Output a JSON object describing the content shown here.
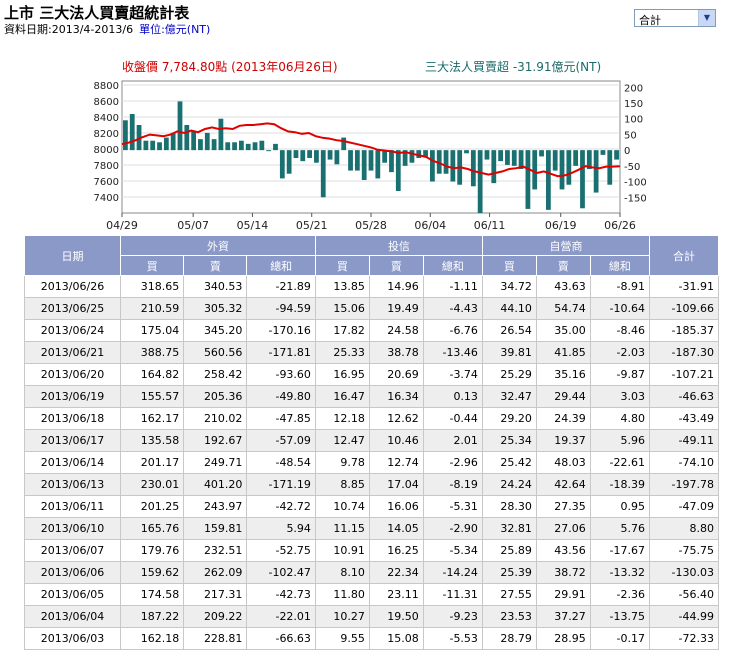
{
  "header": {
    "title": "上市 三大法人買賣超統計表",
    "date_range": "資料日期:2013/4-2013/6",
    "unit": "單位:億元(NT)"
  },
  "select": {
    "value": "合計"
  },
  "chart_data": {
    "type": "bar+line",
    "left_legend": "收盤價 7,784.80點 (2013年06月26日)",
    "right_legend": "三大法人買賣超 -31.91億元(NT)",
    "left_axis": {
      "ticks": [
        7400,
        7600,
        7800,
        8000,
        8200,
        8400,
        8600,
        8800
      ],
      "range": [
        7200,
        8850
      ]
    },
    "right_axis": {
      "ticks": [
        -150,
        -100,
        -50,
        0,
        50,
        100,
        150,
        200
      ],
      "range": [
        -200,
        220
      ]
    },
    "x_labels": [
      "04/29",
      "05/07",
      "05/14",
      "05/21",
      "05/28",
      "06/04",
      "06/11",
      "06/19",
      "06/26"
    ],
    "x_label_indices": [
      0,
      6,
      11,
      16,
      21,
      26,
      31,
      37,
      42
    ],
    "colors": {
      "bar": "#1a7070",
      "line": "#e00000"
    },
    "net_values": [
      95,
      115,
      80,
      30,
      30,
      25,
      40,
      55,
      155,
      80,
      60,
      35,
      55,
      35,
      100,
      25,
      25,
      30,
      20,
      25,
      30,
      0,
      20,
      -90,
      -75,
      -25,
      -35,
      -25,
      -40,
      -150,
      -30,
      -45,
      40,
      -65,
      -65,
      -95,
      -65,
      -90,
      -40,
      -70,
      -130,
      -50,
      -40,
      -25,
      -20,
      -100,
      -75,
      -75,
      -100,
      -110,
      -10,
      -115,
      -200,
      -30,
      -105,
      -35,
      -47,
      -50,
      -60,
      -187,
      -125,
      -20,
      -190,
      -65,
      -125,
      -110,
      -50,
      -185,
      -60,
      -135,
      -15,
      -110,
      -30
    ],
    "close_values": [
      8060,
      8080,
      8110,
      8150,
      8180,
      8170,
      8160,
      8180,
      8220,
      8200,
      8230,
      8210,
      8250,
      8270,
      8250,
      8260,
      8250,
      8290,
      8300,
      8300,
      8310,
      8320,
      8310,
      8260,
      8220,
      8210,
      8190,
      8200,
      8160,
      8140,
      8130,
      8110,
      8100,
      8080,
      8060,
      8040,
      8020,
      7990,
      7980,
      7970,
      7950,
      7960,
      7940,
      7920,
      7900,
      7850,
      7820,
      7780,
      7760,
      7770,
      7750,
      7720,
      7700,
      7680,
      7700,
      7720,
      7750,
      7760,
      7780,
      7740,
      7700,
      7720,
      7690,
      7660,
      7670,
      7700,
      7740,
      7785,
      7770,
      7760,
      7780,
      7780,
      7785
    ]
  },
  "table": {
    "groups": [
      "日期",
      "外資",
      "投信",
      "自營商",
      "合計"
    ],
    "subheaders": [
      "買",
      "賣",
      "總和",
      "買",
      "賣",
      "總和",
      "買",
      "賣",
      "總和"
    ],
    "rows": [
      [
        "2013/06/26",
        "318.65",
        "340.53",
        "-21.89",
        "13.85",
        "14.96",
        "-1.11",
        "34.72",
        "43.63",
        "-8.91",
        "-31.91"
      ],
      [
        "2013/06/25",
        "210.59",
        "305.32",
        "-94.59",
        "15.06",
        "19.49",
        "-4.43",
        "44.10",
        "54.74",
        "-10.64",
        "-109.66"
      ],
      [
        "2013/06/24",
        "175.04",
        "345.20",
        "-170.16",
        "17.82",
        "24.58",
        "-6.76",
        "26.54",
        "35.00",
        "-8.46",
        "-185.37"
      ],
      [
        "2013/06/21",
        "388.75",
        "560.56",
        "-171.81",
        "25.33",
        "38.78",
        "-13.46",
        "39.81",
        "41.85",
        "-2.03",
        "-187.30"
      ],
      [
        "2013/06/20",
        "164.82",
        "258.42",
        "-93.60",
        "16.95",
        "20.69",
        "-3.74",
        "25.29",
        "35.16",
        "-9.87",
        "-107.21"
      ],
      [
        "2013/06/19",
        "155.57",
        "205.36",
        "-49.80",
        "16.47",
        "16.34",
        "0.13",
        "32.47",
        "29.44",
        "3.03",
        "-46.63"
      ],
      [
        "2013/06/18",
        "162.17",
        "210.02",
        "-47.85",
        "12.18",
        "12.62",
        "-0.44",
        "29.20",
        "24.39",
        "4.80",
        "-43.49"
      ],
      [
        "2013/06/17",
        "135.58",
        "192.67",
        "-57.09",
        "12.47",
        "10.46",
        "2.01",
        "25.34",
        "19.37",
        "5.96",
        "-49.11"
      ],
      [
        "2013/06/14",
        "201.17",
        "249.71",
        "-48.54",
        "9.78",
        "12.74",
        "-2.96",
        "25.42",
        "48.03",
        "-22.61",
        "-74.10"
      ],
      [
        "2013/06/13",
        "230.01",
        "401.20",
        "-171.19",
        "8.85",
        "17.04",
        "-8.19",
        "24.24",
        "42.64",
        "-18.39",
        "-197.78"
      ],
      [
        "2013/06/11",
        "201.25",
        "243.97",
        "-42.72",
        "10.74",
        "16.06",
        "-5.31",
        "28.30",
        "27.35",
        "0.95",
        "-47.09"
      ],
      [
        "2013/06/10",
        "165.76",
        "159.81",
        "5.94",
        "11.15",
        "14.05",
        "-2.90",
        "32.81",
        "27.06",
        "5.76",
        "8.80"
      ],
      [
        "2013/06/07",
        "179.76",
        "232.51",
        "-52.75",
        "10.91",
        "16.25",
        "-5.34",
        "25.89",
        "43.56",
        "-17.67",
        "-75.75"
      ],
      [
        "2013/06/06",
        "159.62",
        "262.09",
        "-102.47",
        "8.10",
        "22.34",
        "-14.24",
        "25.39",
        "38.72",
        "-13.32",
        "-130.03"
      ],
      [
        "2013/06/05",
        "174.58",
        "217.31",
        "-42.73",
        "11.80",
        "23.11",
        "-11.31",
        "27.55",
        "29.91",
        "-2.36",
        "-56.40"
      ],
      [
        "2013/06/04",
        "187.22",
        "209.22",
        "-22.01",
        "10.27",
        "19.50",
        "-9.23",
        "23.53",
        "37.27",
        "-13.75",
        "-44.99"
      ],
      [
        "2013/06/03",
        "162.18",
        "228.81",
        "-66.63",
        "9.55",
        "15.08",
        "-5.53",
        "28.79",
        "28.95",
        "-0.17",
        "-72.33"
      ]
    ]
  }
}
